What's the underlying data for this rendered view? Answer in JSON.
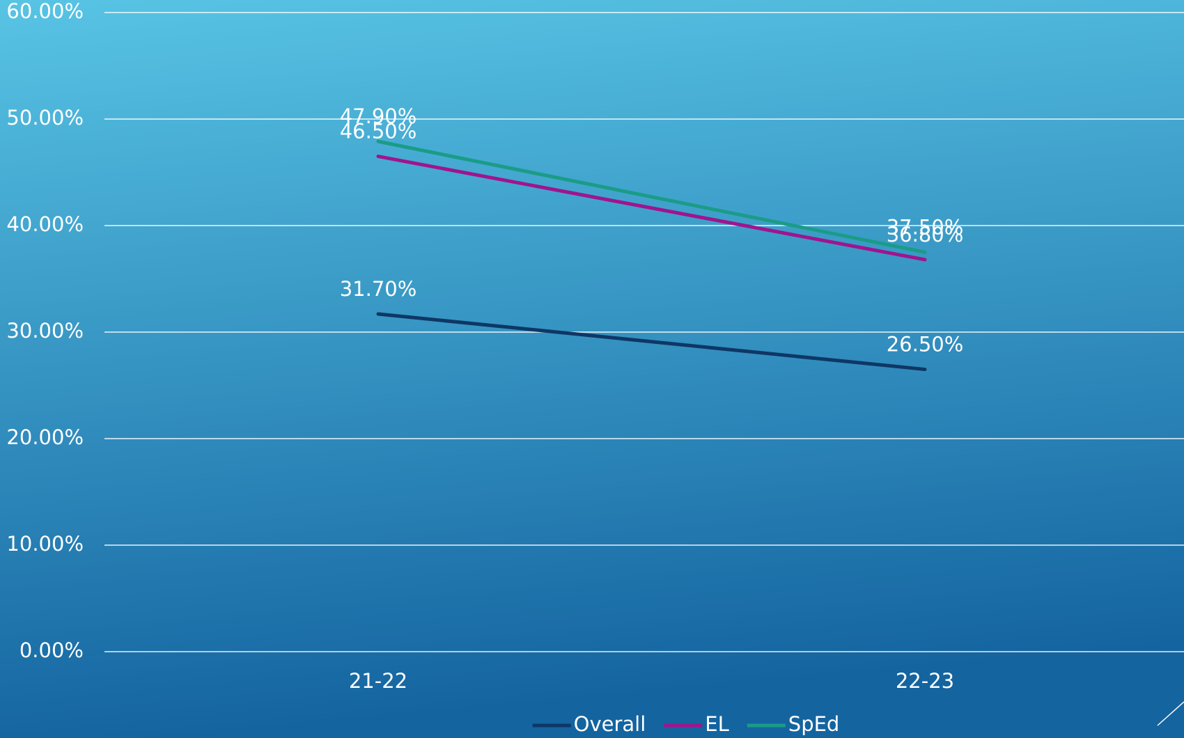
{
  "chart_data": {
    "type": "line",
    "categories": [
      "21-22",
      "22-23"
    ],
    "series": [
      {
        "name": "Overall",
        "color": "#0e3766",
        "values": [
          31.7,
          26.5
        ],
        "value_labels": [
          "31.70%",
          "26.50%"
        ]
      },
      {
        "name": "EL",
        "color": "#a0148e",
        "values": [
          46.5,
          36.8
        ],
        "value_labels": [
          "46.50%",
          "36.80%"
        ]
      },
      {
        "name": "SpEd",
        "color": "#1a9c86",
        "values": [
          47.9,
          37.5
        ],
        "value_labels": [
          "47.90%",
          "37.50%"
        ]
      }
    ],
    "ylim": [
      0,
      60
    ],
    "yticks": [
      {
        "value": 0,
        "label": "0.00%"
      },
      {
        "value": 10,
        "label": "10.00%"
      },
      {
        "value": 20,
        "label": "20.00%"
      },
      {
        "value": 30,
        "label": "30.00%"
      },
      {
        "value": 40,
        "label": "40.00%"
      },
      {
        "value": 50,
        "label": "50.00%"
      },
      {
        "value": 60,
        "label": "60.00%"
      }
    ],
    "grid": true,
    "legend": "bottom"
  }
}
